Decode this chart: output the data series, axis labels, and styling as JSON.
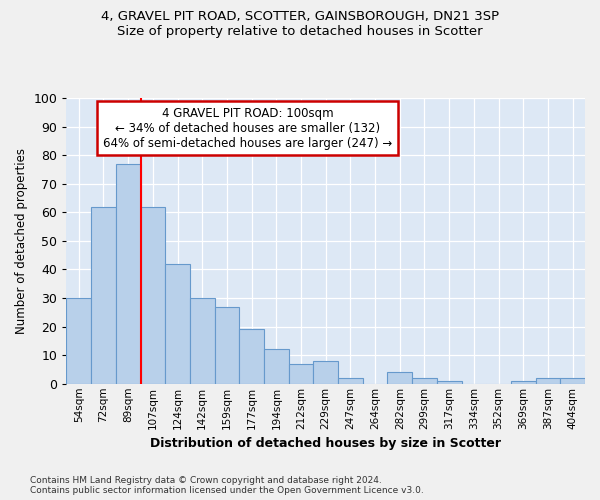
{
  "title1": "4, GRAVEL PIT ROAD, SCOTTER, GAINSBOROUGH, DN21 3SP",
  "title2": "Size of property relative to detached houses in Scotter",
  "xlabel": "Distribution of detached houses by size in Scotter",
  "ylabel": "Number of detached properties",
  "categories": [
    "54sqm",
    "72sqm",
    "89sqm",
    "107sqm",
    "124sqm",
    "142sqm",
    "159sqm",
    "177sqm",
    "194sqm",
    "212sqm",
    "229sqm",
    "247sqm",
    "264sqm",
    "282sqm",
    "299sqm",
    "317sqm",
    "334sqm",
    "352sqm",
    "369sqm",
    "387sqm",
    "404sqm"
  ],
  "values": [
    30,
    62,
    77,
    62,
    42,
    30,
    27,
    19,
    12,
    7,
    8,
    2,
    0,
    4,
    2,
    1,
    0,
    0,
    1,
    2,
    2
  ],
  "bar_color": "#b8d0ea",
  "bar_edge_color": "#6699cc",
  "plot_bg_color": "#dde8f5",
  "fig_bg_color": "#f0f0f0",
  "red_line_index": 2,
  "annotation_line1": "4 GRAVEL PIT ROAD: 100sqm",
  "annotation_line2": "← 34% of detached houses are smaller (132)",
  "annotation_line3": "64% of semi-detached houses are larger (247) →",
  "annotation_box_color": "#ffffff",
  "annotation_box_edge": "#cc0000",
  "ylim": [
    0,
    100
  ],
  "yticks": [
    0,
    10,
    20,
    30,
    40,
    50,
    60,
    70,
    80,
    90,
    100
  ],
  "footer1": "Contains HM Land Registry data © Crown copyright and database right 2024.",
  "footer2": "Contains public sector information licensed under the Open Government Licence v3.0."
}
